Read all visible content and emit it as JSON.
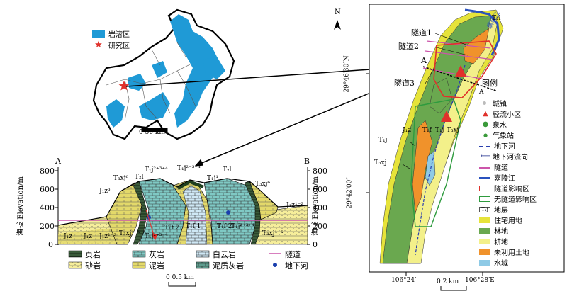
{
  "overview_map": {
    "legend": [
      {
        "label": "岩溶区",
        "color": "#1f9ad6"
      },
      {
        "label": "研究区",
        "color": "#e0312b"
      }
    ],
    "scale_label": "0  50 km"
  },
  "north_label": "N",
  "section": {
    "end_a": "A",
    "end_b": "B",
    "y_axis_label": "海拔 Elevation/m",
    "y_ticks": [
      "800",
      "600",
      "400",
      "200",
      "0"
    ],
    "formation_labels": [
      "T₃xj⁶",
      "T₂l",
      "T₁j²⁺³⁺⁴",
      "T₁j²⁻³⁺⁴",
      "T₂l",
      "T₃xj⁶",
      "J₁z³",
      "T₁j¹",
      "J₁z¹⁻²",
      "J₁z",
      "J₁z",
      "J₁z¹⁻²",
      "T₃xj¹⁻⁵",
      "T₁j²⁺³⁻⁴",
      "T₁f 2",
      "T₁f 1",
      "T₁f 2",
      "T₁j²⁺³⁺⁴",
      "T₃xj¹⁻⁵"
    ],
    "scale_label": "0   0.5 km",
    "legend": [
      {
        "label": "页岩",
        "pattern": "shale"
      },
      {
        "label": "灰岩",
        "pattern": "limestone"
      },
      {
        "label": "白云岩",
        "pattern": "dolomite"
      },
      {
        "label": "隧道",
        "pattern": "tunnel"
      },
      {
        "label": "砂岩",
        "pattern": "sandstone"
      },
      {
        "label": "泥岩",
        "pattern": "mudstone"
      },
      {
        "label": "泥质灰岩",
        "pattern": "marl"
      },
      {
        "label": "地下河",
        "pattern": "river"
      }
    ]
  },
  "detail_map": {
    "lat_top": "29°46′30″N",
    "lat_bottom": "29°42′00″",
    "lon_left": "106°24′",
    "lon_right": "106°28′E",
    "tunnels": [
      "隧道1",
      "隧道2",
      "隧道3"
    ],
    "point_a": "A",
    "point_a2": "A",
    "river_label": "嘉陵江",
    "t2l_label": "T₂l",
    "map_labels": [
      "J₁z",
      "T₁f",
      "T₁j",
      "T₃xj",
      "T₁j",
      "T₃xj"
    ],
    "scale_label": "0      2 km",
    "legend_title": "图例",
    "legend": [
      {
        "label": "城镇",
        "color": "#bbbbbb",
        "kind": "dot"
      },
      {
        "label": "径流小区",
        "color": "#e0312b",
        "kind": "triangle"
      },
      {
        "label": "泉水",
        "color": "#3a9a3a",
        "kind": "pin"
      },
      {
        "label": "气象站",
        "color": "#3a9a3a",
        "kind": "smalldot"
      },
      {
        "label": "地下河",
        "color": "#2a3fae",
        "kind": "dashline"
      },
      {
        "label": "地下河流向",
        "color": "#1a2a8a",
        "kind": "arrow"
      },
      {
        "label": "隧道",
        "color": "#cc55aa",
        "kind": "line"
      },
      {
        "label": "嘉陵江",
        "color": "#2a52be",
        "kind": "thickline"
      },
      {
        "label": "隧道影响区",
        "color": "#e0312b",
        "kind": "box"
      },
      {
        "label": "无隧道影响区",
        "color": "#2e9b3e",
        "kind": "box"
      },
      {
        "label": "地层",
        "color": "#555555",
        "kind": "textbox",
        "code": "T₁j"
      },
      {
        "label": "住宅用地",
        "color": "#e6e33a",
        "kind": "fill"
      },
      {
        "label": "林地",
        "color": "#6aa84f",
        "kind": "fill"
      },
      {
        "label": "耕地",
        "color": "#f3f08a",
        "kind": "fill"
      },
      {
        "label": "未利用土地",
        "color": "#f0922b",
        "kind": "fill"
      },
      {
        "label": "水域",
        "color": "#8ecae6",
        "kind": "fill"
      }
    ]
  }
}
